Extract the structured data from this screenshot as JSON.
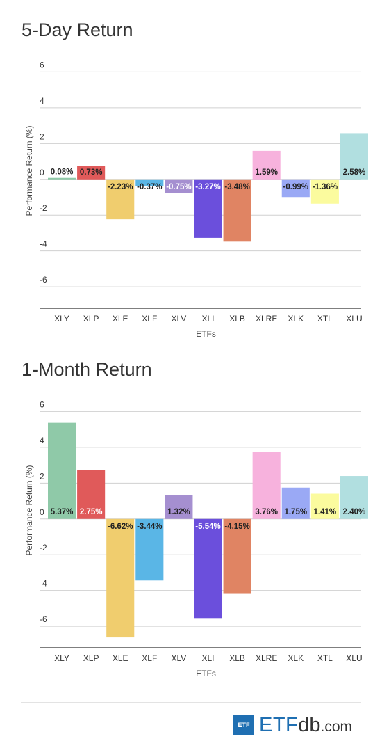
{
  "charts": [
    {
      "type": "bar",
      "title": "5-Day Return",
      "xlabel": "ETFs",
      "ylabel": "Performance Return (%)",
      "ylim": [
        -7.2,
        6.6
      ],
      "yticks": [
        6,
        4,
        2,
        0,
        -2,
        -4,
        -6
      ],
      "categories": [
        "XLY",
        "XLP",
        "XLE",
        "XLF",
        "XLV",
        "XLI",
        "XLB",
        "XLRE",
        "XLK",
        "XTL",
        "XLU"
      ],
      "values": [
        0.08,
        0.73,
        -2.23,
        -0.37,
        -0.75,
        -3.27,
        -3.48,
        1.59,
        -0.99,
        -1.36,
        2.58
      ],
      "labels": [
        "0.08%",
        "0.73%",
        "-2.23%",
        "-0.37%",
        "-0.75%",
        "-3.27%",
        "-3.48%",
        "1.59%",
        "-0.99%",
        "-1.36%",
        "2.58%"
      ],
      "colors": [
        "#8fc9a8",
        "#e05a5a",
        "#f0cd6e",
        "#5ab6e6",
        "#a58fd0",
        "#6b4fdc",
        "#e08463",
        "#f7b2dd",
        "#9aa9f5",
        "#fbfb9e",
        "#b1dfe0"
      ],
      "label_colors": [
        "dark",
        "dark",
        "dark",
        "dark",
        "white",
        "white",
        "dark",
        "dark",
        "dark",
        "dark",
        "dark"
      ]
    },
    {
      "type": "bar",
      "title": "1-Month Return",
      "xlabel": "ETFs",
      "ylabel": "Performance Return (%)",
      "ylim": [
        -7.2,
        6.6
      ],
      "yticks": [
        6,
        4,
        2,
        0,
        -2,
        -4,
        -6
      ],
      "categories": [
        "XLY",
        "XLP",
        "XLE",
        "XLF",
        "XLV",
        "XLI",
        "XLB",
        "XLRE",
        "XLK",
        "XTL",
        "XLU"
      ],
      "values": [
        5.37,
        2.75,
        -6.62,
        -3.44,
        1.32,
        -5.54,
        -4.15,
        3.76,
        1.75,
        1.41,
        2.4
      ],
      "labels": [
        "5.37%",
        "2.75%",
        "-6.62%",
        "-3.44%",
        "1.32%",
        "-5.54%",
        "-4.15%",
        "3.76%",
        "1.75%",
        "1.41%",
        "2.40%"
      ],
      "colors": [
        "#8fc9a8",
        "#e05a5a",
        "#f0cd6e",
        "#5ab6e6",
        "#a58fd0",
        "#6b4fdc",
        "#e08463",
        "#f7b2dd",
        "#9aa9f5",
        "#fbfb9e",
        "#b1dfe0"
      ],
      "label_colors": [
        "dark",
        "white",
        "dark",
        "dark",
        "dark",
        "white",
        "dark",
        "dark",
        "dark",
        "dark",
        "dark"
      ]
    }
  ],
  "logo": {
    "box": "ETF",
    "etf": "ETF",
    "db": "db",
    "com": ".com"
  }
}
